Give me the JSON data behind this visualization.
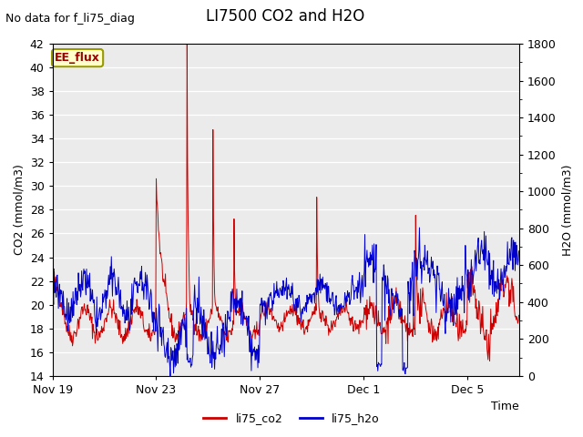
{
  "title": "LI7500 CO2 and H2O",
  "top_left_text": "No data for f_li75_diag",
  "xlabel": "Time",
  "ylabel_left": "CO2 (mmol/m3)",
  "ylabel_right": "H2O (mmol/m3)",
  "ylim_left": [
    14,
    42
  ],
  "ylim_right": [
    0,
    1800
  ],
  "yticks_left": [
    14,
    16,
    18,
    20,
    22,
    24,
    26,
    28,
    30,
    32,
    34,
    36,
    38,
    40,
    42
  ],
  "yticks_right": [
    0,
    200,
    400,
    600,
    800,
    1000,
    1200,
    1400,
    1600,
    1800
  ],
  "xtick_labels": [
    "Nov 19",
    "Nov 23",
    "Nov 27",
    "Dec 1",
    "Dec 5"
  ],
  "xtick_positions": [
    0,
    4,
    8,
    12,
    16
  ],
  "xlim": [
    0,
    18
  ],
  "legend_labels": [
    "li75_co2",
    "li75_h2o"
  ],
  "legend_colors": [
    "#cc0000",
    "#0000cc"
  ],
  "line_color_co2": "#cc0000",
  "line_color_h2o": "#0000cc",
  "fig_bg_color": "#ffffff",
  "plot_bg_color": "#ebebeb",
  "grid_color": "#ffffff",
  "ee_flux_box_color": "#ffffcc",
  "ee_flux_text_color": "#990000",
  "ee_flux_border_color": "#999900",
  "title_fontsize": 12,
  "axis_label_fontsize": 9,
  "tick_fontsize": 9,
  "legend_fontsize": 9,
  "annotation_fontsize": 9
}
